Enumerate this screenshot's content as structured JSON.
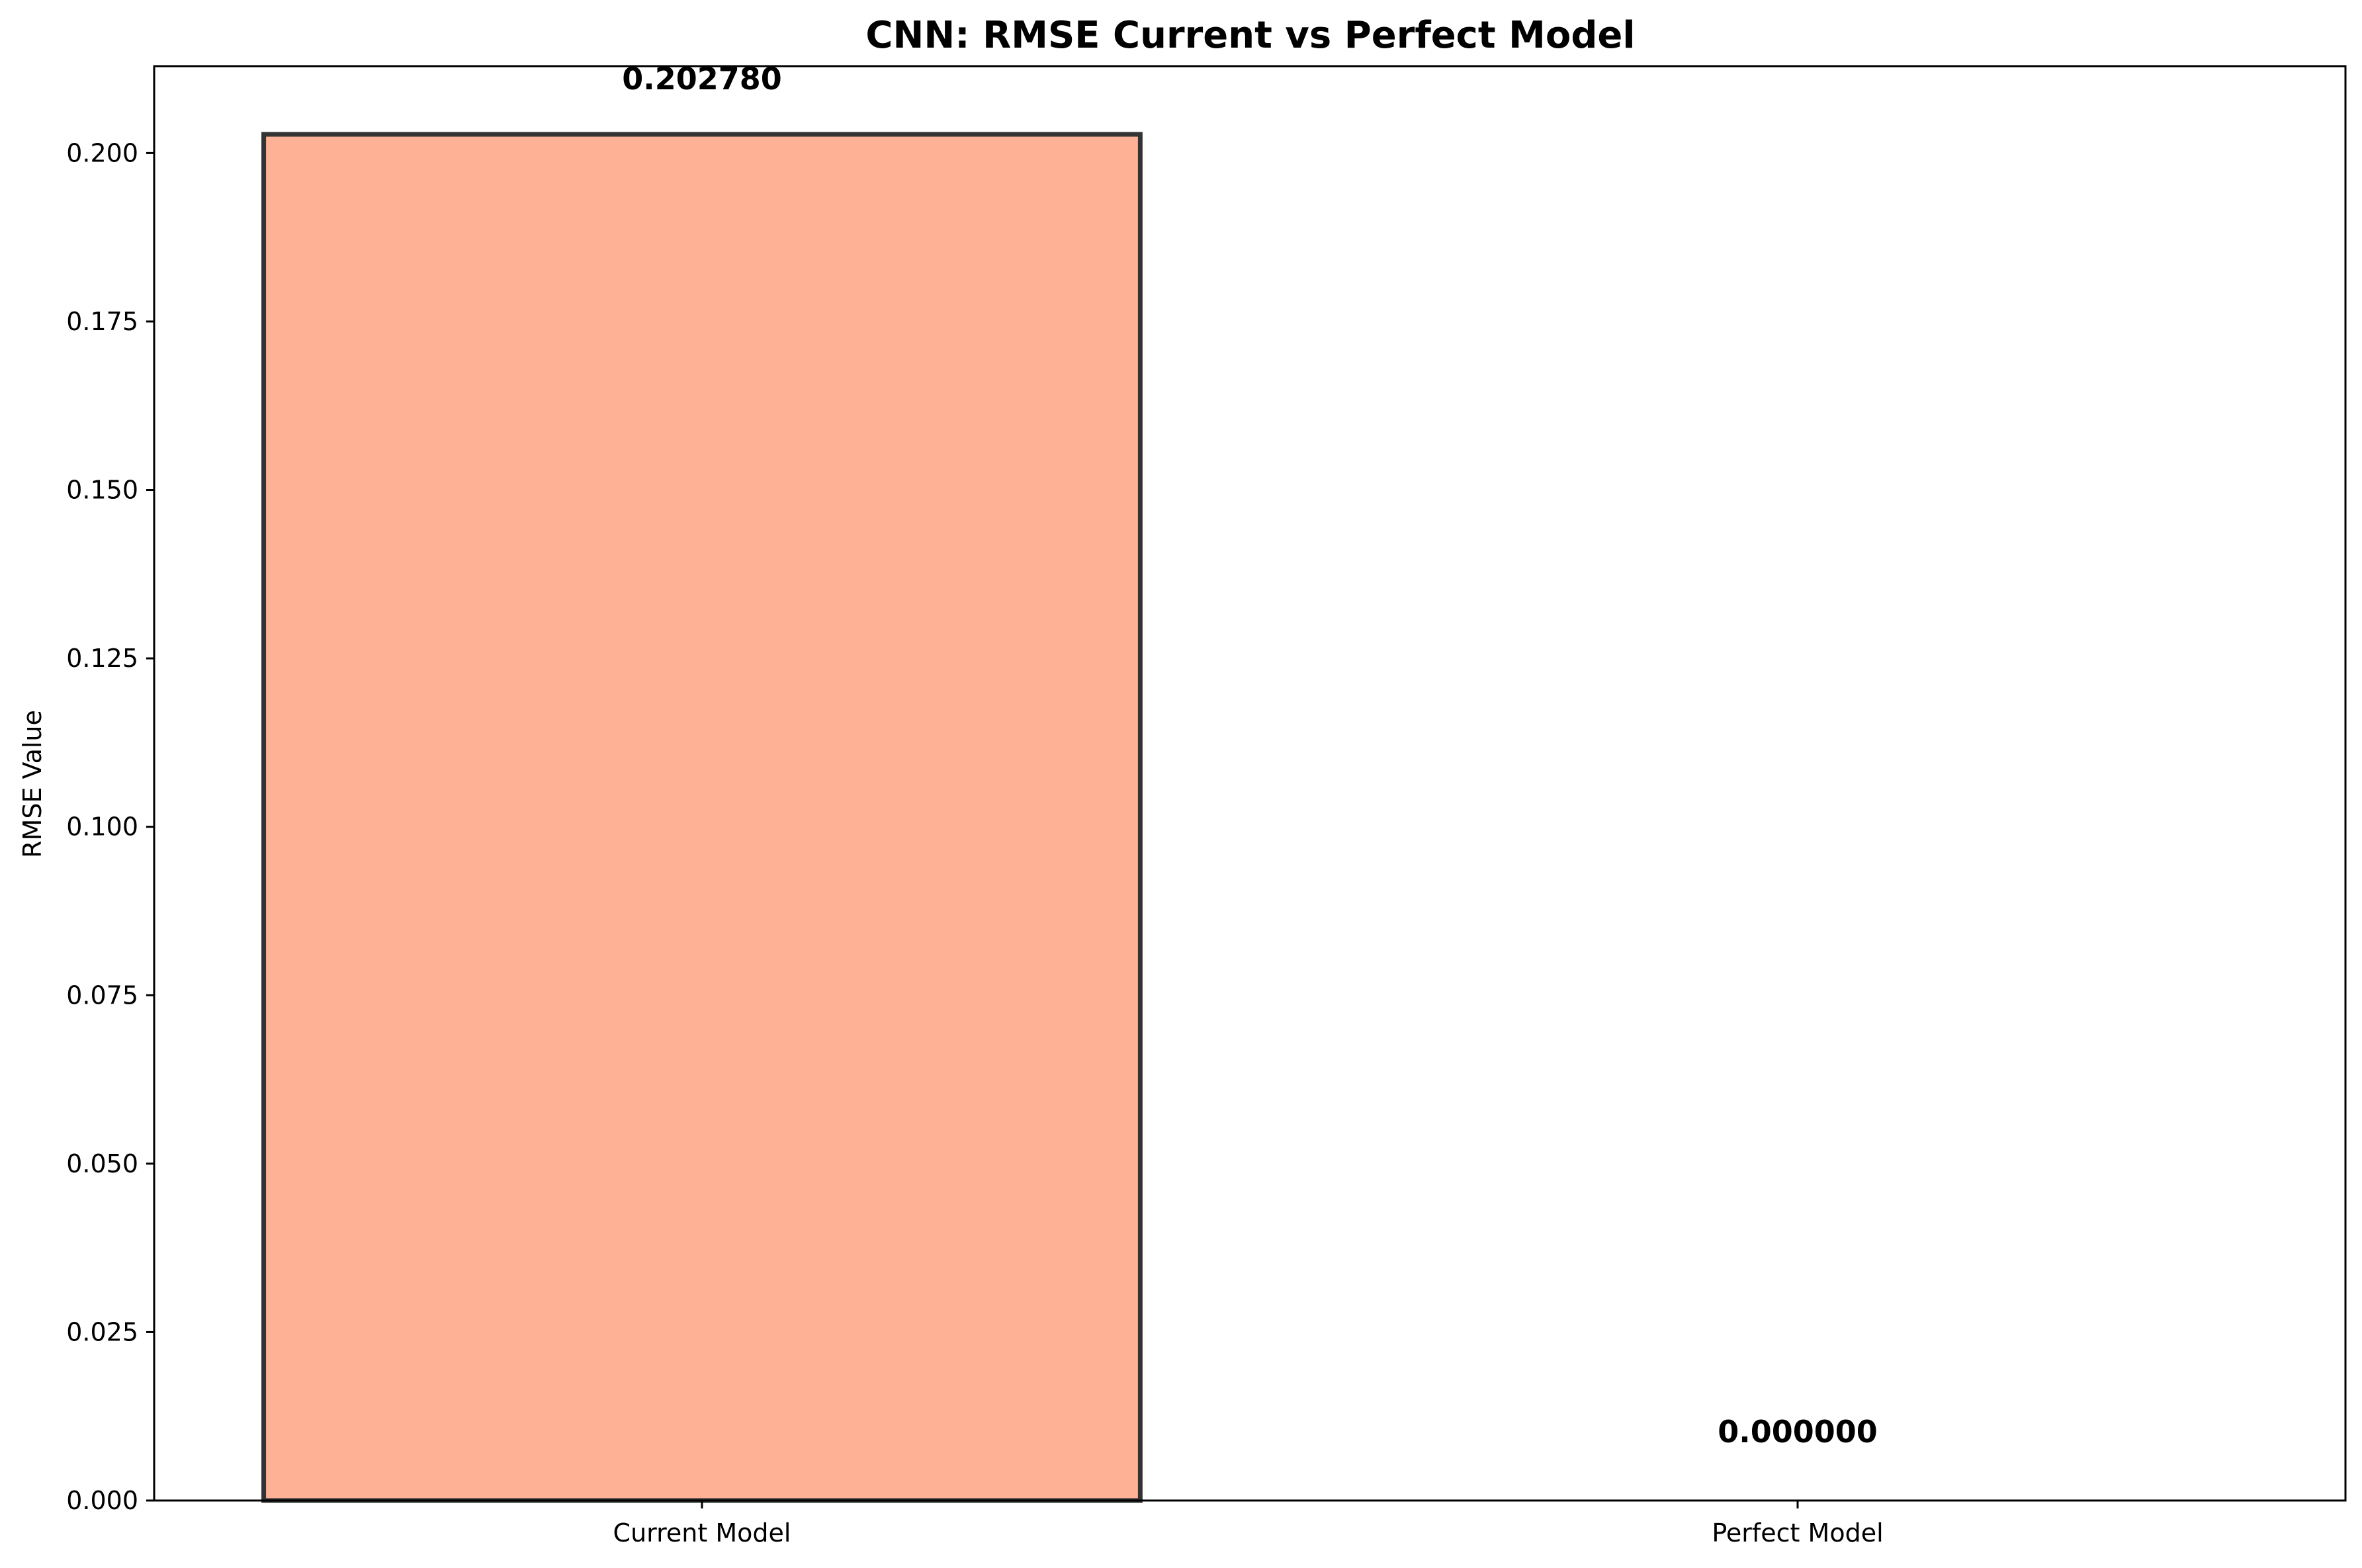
{
  "chart_data": {
    "type": "bar",
    "title": "CNN: RMSE Current vs Perfect Model",
    "xlabel": "",
    "ylabel": "RMSE Value",
    "categories": [
      "Current Model",
      "Perfect Model"
    ],
    "values": [
      0.20278,
      0.0
    ],
    "value_labels": [
      "0.202780",
      "0.000000"
    ],
    "bar_colors": [
      "#FFB195",
      "#98E0A8"
    ],
    "edge_color": "#333333",
    "ylim": [
      0,
      0.2129
    ],
    "yticks": [
      0.0,
      0.025,
      0.05,
      0.075,
      0.1,
      0.125,
      0.15,
      0.175,
      0.2
    ],
    "ytick_labels": [
      "0.000",
      "0.025",
      "0.050",
      "0.075",
      "0.100",
      "0.125",
      "0.150",
      "0.175",
      "0.200"
    ],
    "grid": false,
    "legend": "none"
  }
}
